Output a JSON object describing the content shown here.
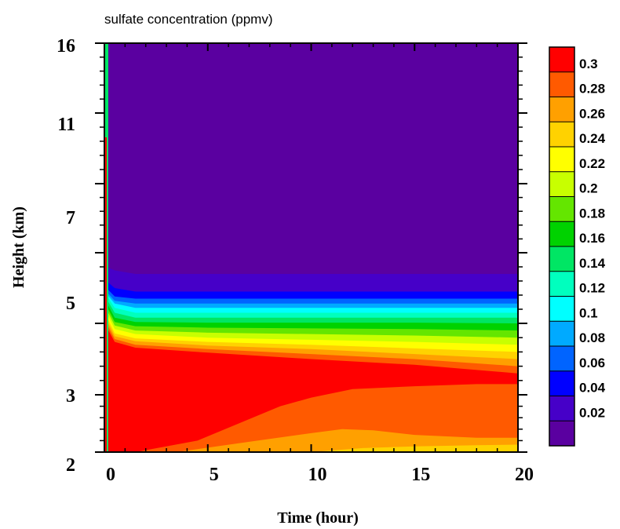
{
  "chart_data": {
    "type": "heatmap",
    "subtype": "filled-contour",
    "title": "sulfate concentration (ppmv)",
    "xlabel": "Time (hour)",
    "ylabel": "Height (km)",
    "xlim": [
      0,
      20
    ],
    "x_ticks": [
      0,
      5,
      10,
      15,
      20
    ],
    "x_tick_labels": [
      "0",
      "5",
      "10",
      "15",
      "20"
    ],
    "y_tick_labels": [
      "2",
      "3",
      "5",
      "7",
      "11",
      "16"
    ],
    "colorbar": {
      "labels": [
        "0.3",
        "0.28",
        "0.26",
        "0.24",
        "0.22",
        "0.2",
        "0.18",
        "0.16",
        "0.14",
        "0.12",
        "0.1",
        "0.08",
        "0.06",
        "0.04",
        "0.02"
      ],
      "colors_top_to_bottom": [
        "#ff0000",
        "#ff5a00",
        "#ffa000",
        "#ffd200",
        "#ffff00",
        "#c8ff00",
        "#64e600",
        "#00d200",
        "#00e664",
        "#00ffbe",
        "#00ffff",
        "#00aaff",
        "#0064ff",
        "#0000ff",
        "#4600c8",
        "#5a00a0"
      ]
    },
    "series": [
      {
        "value_threshold": 0.02,
        "boundary": [
          [
            0.1,
            2.8
          ],
          [
            0.5,
            2.75
          ],
          [
            1.5,
            2.7
          ],
          [
            5,
            2.7
          ],
          [
            10,
            2.7
          ],
          [
            15,
            2.7
          ],
          [
            20,
            2.7
          ]
        ]
      },
      {
        "value_threshold": 0.04,
        "boundary": [
          [
            0.1,
            2.6
          ],
          [
            0.5,
            2.5
          ],
          [
            1.5,
            2.45
          ],
          [
            5,
            2.45
          ],
          [
            10,
            2.45
          ],
          [
            15,
            2.45
          ],
          [
            20,
            2.45
          ]
        ]
      },
      {
        "value_threshold": 0.06,
        "boundary": [
          [
            0.1,
            2.5
          ],
          [
            0.5,
            2.38
          ],
          [
            1.5,
            2.35
          ],
          [
            5,
            2.35
          ],
          [
            10,
            2.35
          ],
          [
            15,
            2.35
          ],
          [
            20,
            2.35
          ]
        ]
      },
      {
        "value_threshold": 0.08,
        "boundary": [
          [
            0.1,
            2.45
          ],
          [
            0.5,
            2.32
          ],
          [
            1.5,
            2.28
          ],
          [
            5,
            2.28
          ],
          [
            10,
            2.28
          ],
          [
            15,
            2.28
          ],
          [
            20,
            2.28
          ]
        ]
      },
      {
        "value_threshold": 0.1,
        "boundary": [
          [
            0.1,
            2.42
          ],
          [
            0.5,
            2.28
          ],
          [
            1.5,
            2.22
          ],
          [
            5,
            2.22
          ],
          [
            10,
            2.22
          ],
          [
            15,
            2.22
          ],
          [
            20,
            2.22
          ]
        ]
      },
      {
        "value_threshold": 0.12,
        "boundary": [
          [
            0.1,
            2.4
          ],
          [
            0.5,
            2.22
          ],
          [
            1.5,
            2.15
          ],
          [
            5,
            2.15
          ],
          [
            10,
            2.15
          ],
          [
            15,
            2.15
          ],
          [
            20,
            2.15
          ]
        ]
      },
      {
        "value_threshold": 0.14,
        "boundary": [
          [
            0.1,
            2.35
          ],
          [
            0.5,
            2.15
          ],
          [
            1.5,
            2.08
          ],
          [
            5,
            2.08
          ],
          [
            10,
            2.08
          ],
          [
            15,
            2.08
          ],
          [
            20,
            2.08
          ]
        ]
      },
      {
        "value_threshold": 0.16,
        "boundary": [
          [
            0.1,
            2.3
          ],
          [
            0.5,
            2.08
          ],
          [
            1.5,
            2.02
          ],
          [
            5,
            2.01
          ],
          [
            10,
            2.01
          ],
          [
            15,
            2.01
          ],
          [
            20,
            2.0
          ]
        ]
      },
      {
        "value_threshold": 0.18,
        "boundary": [
          [
            0.1,
            2.25
          ],
          [
            0.5,
            2.02
          ],
          [
            1.5,
            1.96
          ],
          [
            5,
            1.94
          ],
          [
            10,
            1.93
          ],
          [
            15,
            1.92
          ],
          [
            20,
            1.9
          ]
        ]
      },
      {
        "value_threshold": 0.2,
        "boundary": [
          [
            0.1,
            2.2
          ],
          [
            0.5,
            1.97
          ],
          [
            1.5,
            1.9
          ],
          [
            5,
            1.87
          ],
          [
            10,
            1.85
          ],
          [
            15,
            1.83
          ],
          [
            20,
            1.8
          ]
        ]
      },
      {
        "value_threshold": 0.22,
        "boundary": [
          [
            0.1,
            2.15
          ],
          [
            0.5,
            1.92
          ],
          [
            1.5,
            1.85
          ],
          [
            5,
            1.8
          ],
          [
            10,
            1.77
          ],
          [
            15,
            1.74
          ],
          [
            20,
            1.7
          ]
        ]
      },
      {
        "value_threshold": 0.24,
        "boundary": [
          [
            0.1,
            2.1
          ],
          [
            0.5,
            1.86
          ],
          [
            1.5,
            1.79
          ],
          [
            5,
            1.74
          ],
          [
            10,
            1.7
          ],
          [
            15,
            1.65
          ],
          [
            20,
            1.6
          ]
        ]
      },
      {
        "value_threshold": 0.26,
        "boundary": [
          [
            0.1,
            2.05
          ],
          [
            0.5,
            1.82
          ],
          [
            1.5,
            1.75
          ],
          [
            5,
            1.69
          ],
          [
            10,
            1.64
          ],
          [
            15,
            1.57
          ],
          [
            20,
            1.5
          ]
        ]
      },
      {
        "value_threshold": 0.28,
        "boundary": [
          [
            0.1,
            2.0
          ],
          [
            0.5,
            1.78
          ],
          [
            1.5,
            1.7
          ],
          [
            5,
            1.64
          ],
          [
            10,
            1.57
          ],
          [
            15,
            1.5
          ],
          [
            20,
            1.4
          ]
        ]
      },
      {
        "value_threshold": 0.3,
        "boundary": [
          [
            0.1,
            1.95
          ],
          [
            0.5,
            1.74
          ],
          [
            1.5,
            1.66
          ],
          [
            5,
            1.59
          ],
          [
            10,
            1.5
          ],
          [
            15,
            1.42
          ],
          [
            20,
            1.3
          ]
        ]
      }
    ],
    "regions_below_red": [
      {
        "value": 0.28,
        "upper_boundary": [
          [
            1.5,
            0.0
          ],
          [
            4.5,
            0.2
          ],
          [
            6.5,
            0.5
          ],
          [
            8.5,
            0.8
          ],
          [
            10,
            0.95
          ],
          [
            12,
            1.08
          ],
          [
            15,
            1.12
          ],
          [
            18,
            1.15
          ],
          [
            20,
            1.15
          ]
        ]
      },
      {
        "value": 0.26,
        "upper_boundary": [
          [
            3.5,
            0.0
          ],
          [
            7,
            0.18
          ],
          [
            10,
            0.33
          ],
          [
            11.5,
            0.4
          ],
          [
            13,
            0.38
          ],
          [
            15,
            0.3
          ],
          [
            18,
            0.25
          ],
          [
            20,
            0.25
          ]
        ]
      },
      {
        "value": 0.24,
        "upper_boundary": [
          [
            10,
            0.0
          ],
          [
            12.5,
            0.07
          ],
          [
            15,
            0.1
          ],
          [
            18,
            0.12
          ],
          [
            20,
            0.13
          ]
        ]
      }
    ]
  }
}
